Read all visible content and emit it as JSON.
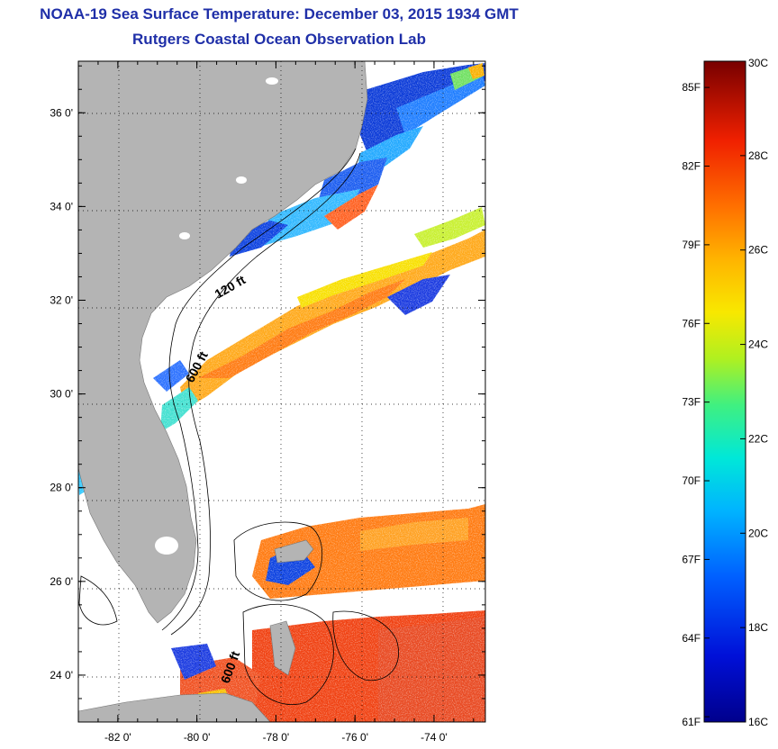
{
  "header": {
    "title": "NOAA-19 Sea Surface Temperature:  December 03, 2015 1934 GMT",
    "subtitle": "Rutgers Coastal Ocean Observation Lab"
  },
  "map": {
    "lon_range": [
      -83,
      -72.7
    ],
    "lat_range": [
      23,
      37.1
    ],
    "x_ticks": [
      {
        "value": -82,
        "label": "-82 0'"
      },
      {
        "value": -80,
        "label": "-80 0'"
      },
      {
        "value": -78,
        "label": "-78 0'"
      },
      {
        "value": -76,
        "label": "-76 0'"
      },
      {
        "value": -74,
        "label": "-74 0'"
      }
    ],
    "y_ticks": [
      {
        "value": 36,
        "label": "36 0'"
      },
      {
        "value": 34,
        "label": "34 0'"
      },
      {
        "value": 32,
        "label": "32 0'"
      },
      {
        "value": 30,
        "label": "30 0'"
      },
      {
        "value": 28,
        "label": "28 0'"
      },
      {
        "value": 26,
        "label": "26 0'"
      },
      {
        "value": 24,
        "label": "24 0'"
      }
    ],
    "depth_labels": [
      "120 ft",
      "600 ft",
      "600 ft"
    ],
    "grid": "dotted",
    "colors": {
      "land": "#b4b4b4",
      "ocean_no_data": "#ffffff"
    }
  },
  "colorbar": {
    "c_range": [
      16,
      30
    ],
    "celsius": [
      {
        "value": 30,
        "label": "30C"
      },
      {
        "value": 28,
        "label": "28C"
      },
      {
        "value": 26,
        "label": "26C"
      },
      {
        "value": 24,
        "label": "24C"
      },
      {
        "value": 22,
        "label": "22C"
      },
      {
        "value": 20,
        "label": "20C"
      },
      {
        "value": 18,
        "label": "18C"
      },
      {
        "value": 16,
        "label": "16C"
      }
    ],
    "fahrenheit": [
      {
        "value": 85,
        "label": "85F"
      },
      {
        "value": 82,
        "label": "82F"
      },
      {
        "value": 79,
        "label": "79F"
      },
      {
        "value": 76,
        "label": "76F"
      },
      {
        "value": 73,
        "label": "73F"
      },
      {
        "value": 70,
        "label": "70F"
      },
      {
        "value": 67,
        "label": "67F"
      },
      {
        "value": 64,
        "label": "64F"
      },
      {
        "value": 61,
        "label": "61F"
      }
    ]
  }
}
